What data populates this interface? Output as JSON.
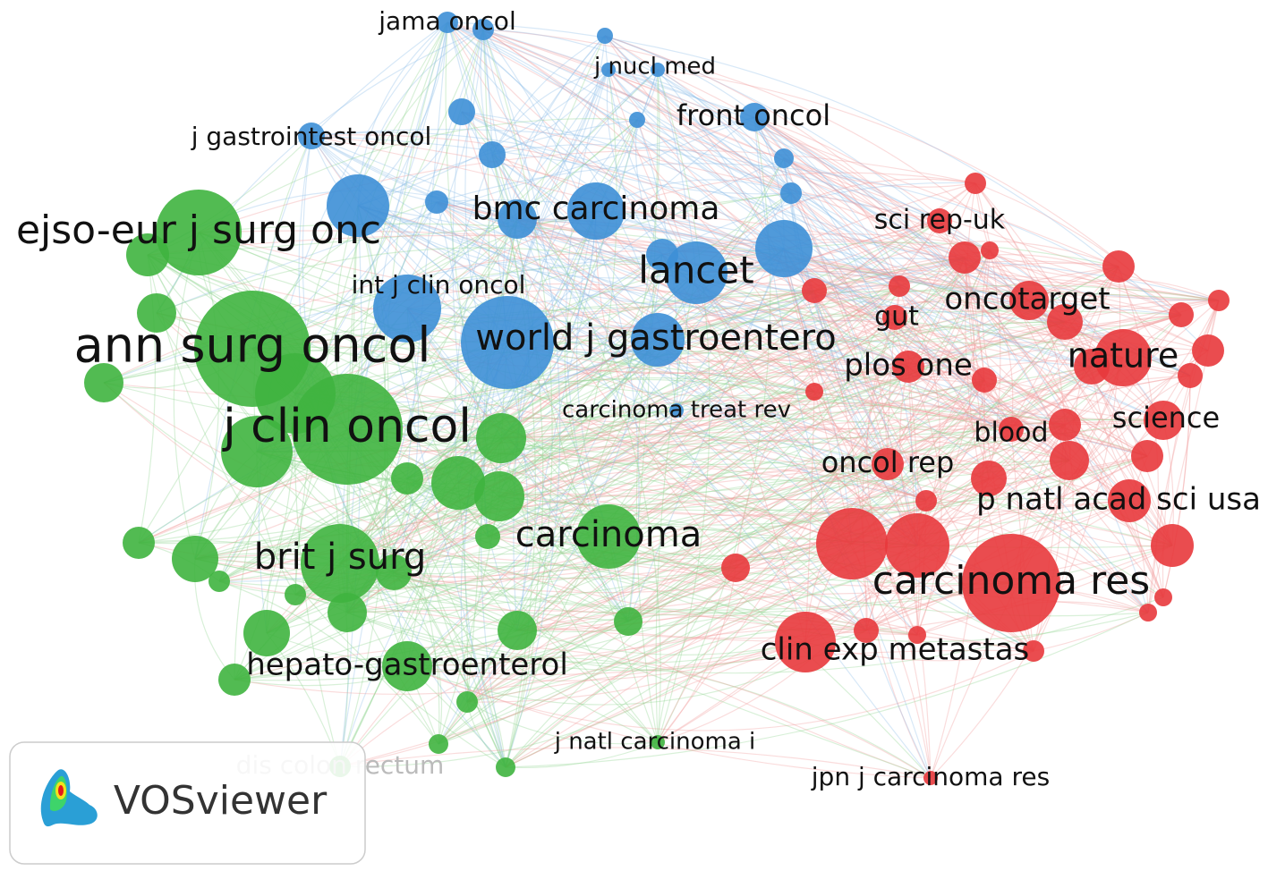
{
  "nodes": [
    "jama oncol",
    "j nucl med",
    "front oncol",
    "j gastrointest oncol",
    "ejso-eur j surg onc",
    "bmc carcinoma",
    "sci rep-uk",
    "lancet",
    "int j clin oncol",
    "oncotarget",
    "gut",
    "ann surg oncol",
    "world j gastroentero",
    "nature",
    "plos one",
    "carcinoma treat rev",
    "j clin oncol",
    "blood",
    "science",
    "oncol rep",
    "p natl acad sci usa",
    "carcinoma",
    "brit j surg",
    "carcinoma res",
    "clin exp metastas",
    "hepato-gastroenterol",
    "j natl carcinoma i",
    "dis colon rectum",
    "jpn j carcinoma res"
  ],
  "logo": {
    "text": "VOSviewer"
  }
}
